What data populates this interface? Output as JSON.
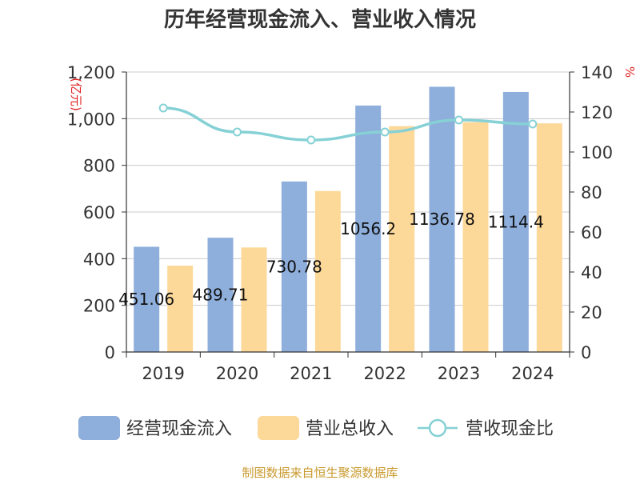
{
  "chart_data": {
    "type": "bar",
    "title": "历年经营现金流入、营业收入情况",
    "categories": [
      "2019",
      "2020",
      "2021",
      "2022",
      "2023",
      "2024"
    ],
    "series": [
      {
        "name": "经营现金流入",
        "kind": "bar",
        "axis": "left",
        "color": "#8eaedb",
        "values": [
          451.06,
          489.71,
          730.78,
          1056.2,
          1136.78,
          1114.4
        ],
        "labels": [
          "451.06",
          "489.71",
          "730.78",
          "1056.2",
          "1136.78",
          "1114.4"
        ]
      },
      {
        "name": "营业总收入",
        "kind": "bar",
        "axis": "left",
        "color": "#fdd999",
        "values": [
          370,
          448,
          690,
          968,
          985,
          980
        ]
      },
      {
        "name": "营收现金比",
        "kind": "line",
        "axis": "right",
        "color": "#86d1d5",
        "values": [
          122,
          110,
          106,
          110,
          116,
          114
        ]
      }
    ],
    "ylim_left": [
      0,
      1200
    ],
    "yticks_left": [
      0,
      200,
      400,
      600,
      800,
      1000,
      1200
    ],
    "yticklabels_left": [
      "0",
      "200",
      "400",
      "600",
      "800",
      "1,000",
      "1,200"
    ],
    "ylabel_left": "(亿元)",
    "ylim_right": [
      0,
      140
    ],
    "yticks_right": [
      0,
      20,
      40,
      60,
      80,
      100,
      120,
      140
    ],
    "yticklabels_right": [
      "0",
      "20",
      "40",
      "60",
      "80",
      "100",
      "120",
      "140"
    ],
    "ylabel_right": "%",
    "legend": [
      "经营现金流入",
      "营业总收入",
      "营收现金比"
    ],
    "legend_position": "bottom",
    "grid": true,
    "source": "制图数据来自恒生聚源数据库"
  }
}
